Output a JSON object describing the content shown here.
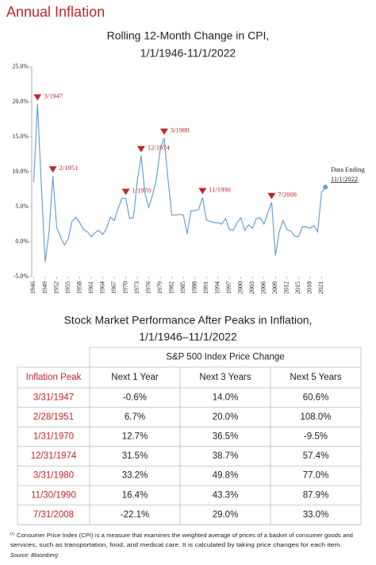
{
  "header": {
    "title": "Annual Inflation"
  },
  "chart_data": {
    "type": "line",
    "title": [
      "Rolling 12-Month Change in CPI,",
      "1/1/1946-11/1/2022"
    ],
    "x": [
      1946,
      1947,
      1948,
      1949,
      1950,
      1951,
      1952,
      1953,
      1954,
      1955,
      1956,
      1957,
      1958,
      1959,
      1960,
      1961,
      1962,
      1963,
      1964,
      1965,
      1966,
      1967,
      1968,
      1969,
      1970,
      1971,
      1972,
      1973,
      1974,
      1975,
      1976,
      1977,
      1978,
      1979,
      1980,
      1981,
      1982,
      1983,
      1984,
      1985,
      1986,
      1987,
      1988,
      1989,
      1990,
      1991,
      1992,
      1993,
      1994,
      1995,
      1996,
      1997,
      1998,
      1999,
      2000,
      2001,
      2002,
      2003,
      2004,
      2005,
      2006,
      2007,
      2008,
      2009,
      2010,
      2011,
      2012,
      2013,
      2014,
      2015,
      2016,
      2017,
      2018,
      2019,
      2020,
      2021,
      2022
    ],
    "series": [
      {
        "name": "CPI",
        "color": "#6a9fd4",
        "values": [
          8.5,
          19.7,
          8,
          -2.9,
          1.3,
          9.4,
          2,
          0.7,
          -0.5,
          0.4,
          2.9,
          3.5,
          2.7,
          1.7,
          1.4,
          0.7,
          1.3,
          1.6,
          1.0,
          1.9,
          3.5,
          3.0,
          4.7,
          6.2,
          6.2,
          3.3,
          3.4,
          8.7,
          12.3,
          6.9,
          4.9,
          6.7,
          9.0,
          13.3,
          14.8,
          8.9,
          3.8,
          3.8,
          3.9,
          3.8,
          1.1,
          4.4,
          4.4,
          4.6,
          6.3,
          3.1,
          2.9,
          2.7,
          2.7,
          2.5,
          3.3,
          1.7,
          1.6,
          2.7,
          3.4,
          1.6,
          2.4,
          1.9,
          3.3,
          3.4,
          2.5,
          4.1,
          5.6,
          -2.0,
          1.5,
          3.0,
          1.7,
          1.5,
          0.8,
          0.7,
          2.1,
          2.1,
          1.9,
          2.3,
          1.4,
          7.0,
          7.8
        ]
      }
    ],
    "xlim": [
      1945.5,
      2023
    ],
    "xticks": [
      1946,
      1949,
      1952,
      1955,
      1958,
      1961,
      1964,
      1967,
      1970,
      1973,
      1976,
      1979,
      1982,
      1985,
      1988,
      1991,
      1994,
      1997,
      2000,
      2003,
      2006,
      2009,
      2012,
      2015,
      2018,
      2021
    ],
    "ylim": [
      -5,
      25
    ],
    "yticks": [
      {
        "value": -5,
        "label": "-5.0%"
      },
      {
        "value": 0,
        "label": "0.0%"
      },
      {
        "value": 5,
        "label": "5.0%"
      },
      {
        "value": 10,
        "label": "10.0%"
      },
      {
        "value": 15,
        "label": "15.0%"
      },
      {
        "value": 20,
        "label": "20.0%"
      },
      {
        "value": 25,
        "label": "25.0%"
      }
    ],
    "grid": false,
    "annotations": [
      {
        "label": "3/1947",
        "x": 1947,
        "y": 19.7
      },
      {
        "label": "2/1951",
        "x": 1951,
        "y": 9.4
      },
      {
        "label": "1/1970",
        "x": 1970,
        "y": 6.2
      },
      {
        "label": "12/1974",
        "x": 1974,
        "y": 12.3
      },
      {
        "label": "3/1980",
        "x": 1980,
        "y": 14.8
      },
      {
        "label": "11/1990",
        "x": 1990,
        "y": 6.3
      },
      {
        "label": "7/2008",
        "x": 2008,
        "y": 5.6
      }
    ],
    "marker_color": "#c1272d",
    "end_note": [
      "Data Ending",
      "11/1/2022"
    ]
  },
  "table": {
    "title": [
      "Stock Market Performance After Peaks in Inflation,",
      "1/1/1946–11/1/2022"
    ],
    "group_header": "S&P 500 Index Price Change",
    "columns": [
      "Inflation Peak",
      "Next 1 Year",
      "Next 3 Years",
      "Next 5 Years"
    ],
    "rows": [
      [
        "3/31/1947",
        "-0.6%",
        "14.0%",
        "60.6%"
      ],
      [
        "2/28/1951",
        "6.7%",
        "20.0%",
        "108.0%"
      ],
      [
        "1/31/1970",
        "12.7%",
        "36.5%",
        "-9.5%"
      ],
      [
        "12/31/1974",
        "31.5%",
        "38.7%",
        "57.4%"
      ],
      [
        "3/31/1980",
        "33.2%",
        "49.8%",
        "77.0%"
      ],
      [
        "11/30/1990",
        "16.4%",
        "43.3%",
        "87.9%"
      ],
      [
        "7/31/2008",
        "-22.1%",
        "29.0%",
        "33.0%"
      ]
    ]
  },
  "footnote": {
    "marker": "(1)",
    "lines": [
      "Consumer Price Index (CPI) is a measure that examines the weighted average of prices of a basket of consumer goods and",
      "services, such as transportation, food, and medical care. It is calculated by taking price changes for each item."
    ]
  },
  "source": "Source: Bloomberg"
}
